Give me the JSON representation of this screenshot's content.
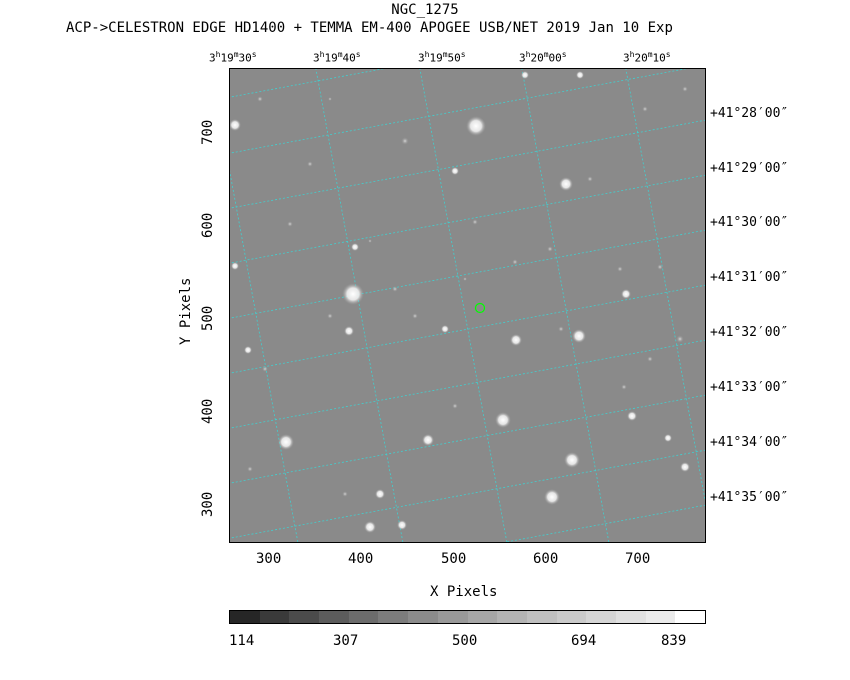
{
  "header": {
    "title": "NGC_1275",
    "subtitle": "ACP->CELESTRON EDGE HD1400 + TEMMA EM-400 APOGEE USB/NET   2019 Jan 10    Exp"
  },
  "axes": {
    "xlabel": "X Pixels",
    "ylabel": "Y Pixels",
    "x_ticks": [
      "300",
      "400",
      "500",
      "600",
      "700"
    ],
    "y_ticks": [
      "700",
      "600",
      "500",
      "400",
      "300"
    ],
    "ra_ticks": [
      {
        "h": "3",
        "m": "19",
        "s": "30"
      },
      {
        "h": "3",
        "m": "19",
        "s": "40"
      },
      {
        "h": "3",
        "m": "19",
        "s": "50"
      },
      {
        "h": "3",
        "m": "20",
        "s": "00"
      },
      {
        "h": "3",
        "m": "20",
        "s": "10"
      }
    ],
    "dec_ticks": [
      "+41°28′00″",
      "+41°29′00″",
      "+41°30′00″",
      "+41°31′00″",
      "+41°32′00″",
      "+41°33′00″",
      "+41°34′00″",
      "+41°35′00″"
    ]
  },
  "colorbar": {
    "labels": [
      "114",
      "307",
      "500",
      "694",
      "839"
    ],
    "colors": [
      "#262626",
      "#3a3a3a",
      "#4b4b4b",
      "#5c5c5c",
      "#6c6c6c",
      "#7c7c7c",
      "#8b8b8b",
      "#999999",
      "#a6a6a6",
      "#b3b3b3",
      "#bfbfbf",
      "#cacaca",
      "#d5d5d5",
      "#e0e0e0",
      "#eaeaea",
      "#ffffff"
    ]
  },
  "colors": {
    "sky": "#8a8a8a",
    "grid": "#40d0d0",
    "marker": "#00ff00"
  }
}
